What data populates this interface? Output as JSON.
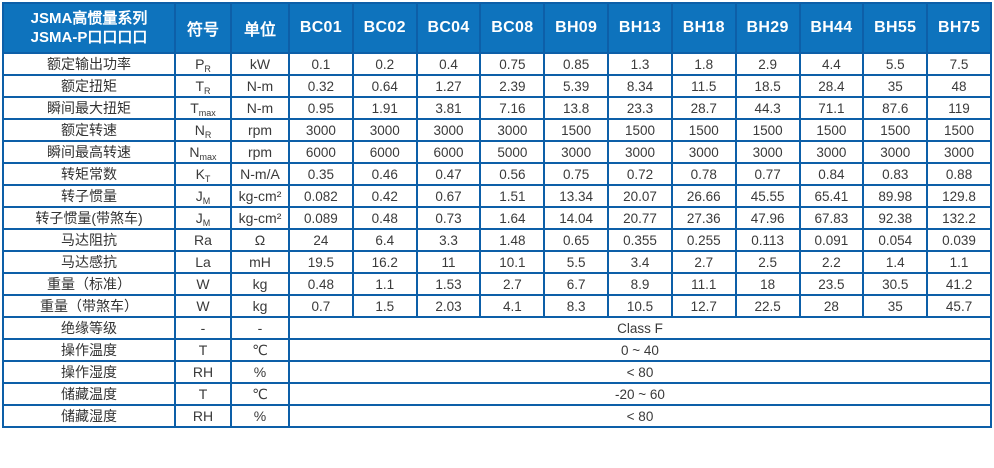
{
  "table": {
    "title_line1": "JSMA高惯量系列",
    "title_line2": "JSMA-P口口口口",
    "symbol_header": "符号",
    "unit_header": "单位",
    "models": [
      "BC01",
      "BC02",
      "BC04",
      "BC08",
      "BH09",
      "BH13",
      "BH18",
      "BH29",
      "BH44",
      "BH55",
      "BH75"
    ],
    "colors": {
      "header_bg": "#0e73bd",
      "grid_border": "#0d5fa8",
      "header_text": "#ffffff",
      "body_text": "#3a3a3a"
    },
    "rows": [
      {
        "label": "额定输出功率",
        "symbol": {
          "base": "P",
          "sub": "R"
        },
        "unit": "kW",
        "values": [
          "0.1",
          "0.2",
          "0.4",
          "0.75",
          "0.85",
          "1.3",
          "1.8",
          "2.9",
          "4.4",
          "5.5",
          "7.5"
        ]
      },
      {
        "label": "额定扭矩",
        "symbol": {
          "base": "T",
          "sub": "R"
        },
        "unit": "N-m",
        "values": [
          "0.32",
          "0.64",
          "1.27",
          "2.39",
          "5.39",
          "8.34",
          "11.5",
          "18.5",
          "28.4",
          "35",
          "48"
        ]
      },
      {
        "label": "瞬间最大扭矩",
        "symbol": {
          "base": "T",
          "sub": "max"
        },
        "unit": "N-m",
        "values": [
          "0.95",
          "1.91",
          "3.81",
          "7.16",
          "13.8",
          "23.3",
          "28.7",
          "44.3",
          "71.1",
          "87.6",
          "119"
        ]
      },
      {
        "label": "额定转速",
        "symbol": {
          "base": "N",
          "sub": "R"
        },
        "unit": "rpm",
        "values": [
          "3000",
          "3000",
          "3000",
          "3000",
          "1500",
          "1500",
          "1500",
          "1500",
          "1500",
          "1500",
          "1500"
        ]
      },
      {
        "label": "瞬间最高转速",
        "symbol": {
          "base": "N",
          "sub": "max"
        },
        "unit": "rpm",
        "values": [
          "6000",
          "6000",
          "6000",
          "5000",
          "3000",
          "3000",
          "3000",
          "3000",
          "3000",
          "3000",
          "3000"
        ]
      },
      {
        "label": "转矩常数",
        "symbol": {
          "base": "K",
          "sub": "T"
        },
        "unit": "N-m/A",
        "values": [
          "0.35",
          "0.46",
          "0.47",
          "0.56",
          "0.75",
          "0.72",
          "0.78",
          "0.77",
          "0.84",
          "0.83",
          "0.88"
        ]
      },
      {
        "label": "转子惯量",
        "symbol": {
          "base": "J",
          "sub": "M"
        },
        "unit": "kg-cm²",
        "values": [
          "0.082",
          "0.42",
          "0.67",
          "1.51",
          "13.34",
          "20.07",
          "26.66",
          "45.55",
          "65.41",
          "89.98",
          "129.8"
        ]
      },
      {
        "label": "转子惯量(带煞车)",
        "symbol": {
          "base": "J",
          "sub": "M"
        },
        "unit": "kg-cm²",
        "values": [
          "0.089",
          "0.48",
          "0.73",
          "1.64",
          "14.04",
          "20.77",
          "27.36",
          "47.96",
          "67.83",
          "92.38",
          "132.2"
        ]
      },
      {
        "label": "马达阻抗",
        "symbol": {
          "base": "Ra",
          "sub": ""
        },
        "unit": "Ω",
        "values": [
          "24",
          "6.4",
          "3.3",
          "1.48",
          "0.65",
          "0.355",
          "0.255",
          "0.113",
          "0.091",
          "0.054",
          "0.039"
        ]
      },
      {
        "label": "马达感抗",
        "symbol": {
          "base": "La",
          "sub": ""
        },
        "unit": "mH",
        "values": [
          "19.5",
          "16.2",
          "11",
          "10.1",
          "5.5",
          "3.4",
          "2.7",
          "2.5",
          "2.2",
          "1.4",
          "1.1"
        ]
      },
      {
        "label": "重量（标准）",
        "symbol": {
          "base": "W",
          "sub": ""
        },
        "unit": "kg",
        "values": [
          "0.48",
          "1.1",
          "1.53",
          "2.7",
          "6.7",
          "8.9",
          "11.1",
          "18",
          "23.5",
          "30.5",
          "41.2"
        ]
      },
      {
        "label": "重量（带煞车）",
        "symbol": {
          "base": "W",
          "sub": ""
        },
        "unit": "kg",
        "values": [
          "0.7",
          "1.5",
          "2.03",
          "4.1",
          "8.3",
          "10.5",
          "12.7",
          "22.5",
          "28",
          "35",
          "45.7"
        ]
      },
      {
        "label": "绝缘等级",
        "symbol": {
          "base": "-",
          "sub": ""
        },
        "unit": "-",
        "merged": "Class F"
      },
      {
        "label": "操作温度",
        "symbol": {
          "base": "T",
          "sub": ""
        },
        "unit": "℃",
        "merged": "0 ~ 40"
      },
      {
        "label": "操作湿度",
        "symbol": {
          "base": "RH",
          "sub": ""
        },
        "unit": "%",
        "merged": "< 80"
      },
      {
        "label": "储藏温度",
        "symbol": {
          "base": "T",
          "sub": ""
        },
        "unit": "℃",
        "merged": "-20 ~ 60"
      },
      {
        "label": "储藏湿度",
        "symbol": {
          "base": "RH",
          "sub": ""
        },
        "unit": "%",
        "merged": "< 80"
      }
    ]
  }
}
